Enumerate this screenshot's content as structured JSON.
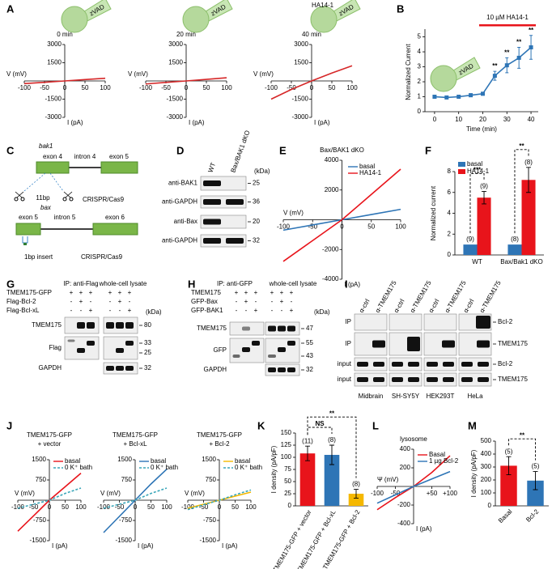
{
  "panel_labels": [
    "A",
    "B",
    "C",
    "D",
    "E",
    "F",
    "G",
    "H",
    "I",
    "J",
    "K",
    "L",
    "M"
  ],
  "chart_data": [
    {
      "type": "line",
      "title": "0 min",
      "pipette_label": "zVAD",
      "x_label": "V (mV)",
      "y_label": "I (pA)",
      "x": [
        -100,
        -50,
        0,
        50,
        100
      ],
      "series": [
        {
          "color": "#d62728",
          "values": [
            -220,
            -110,
            0,
            110,
            220
          ]
        }
      ],
      "xlim": [
        -100,
        100
      ],
      "ylim": [
        -3000,
        3000
      ],
      "xticks": [
        -100,
        -50,
        0,
        50,
        100
      ],
      "yticks": [
        -3000,
        -1500,
        1500,
        3000
      ]
    },
    {
      "type": "line",
      "title": "20 min",
      "pipette_label": "zVAD",
      "x_label": "V (mV)",
      "y_label": "I (pA)",
      "x": [
        -100,
        -50,
        0,
        50,
        100
      ],
      "series": [
        {
          "color": "#d62728",
          "values": [
            -250,
            -120,
            0,
            130,
            260
          ]
        }
      ],
      "xlim": [
        -100,
        100
      ],
      "ylim": [
        -3000,
        3000
      ],
      "xticks": [
        -100,
        -50,
        0,
        50,
        100
      ],
      "yticks": [
        -3000,
        -1500,
        1500,
        3000
      ]
    },
    {
      "type": "line",
      "title": "40 min",
      "drug_label": "HA14-1",
      "pipette_label": "zVAD",
      "x_label": "V (mV)",
      "y_label": "I (pA)",
      "x": [
        -100,
        -50,
        0,
        50,
        100
      ],
      "series": [
        {
          "color": "#d62728",
          "values": [
            -1500,
            -700,
            0,
            650,
            1250
          ]
        }
      ],
      "xlim": [
        -100,
        100
      ],
      "ylim": [
        -3000,
        3000
      ],
      "xticks": [
        -100,
        -50,
        0,
        50,
        100
      ],
      "yticks": [
        -3000,
        -1500,
        1500,
        3000
      ]
    },
    {
      "type": "timecourse",
      "annotation": "10 µM HA14-1",
      "pipette_label": "zVAD",
      "x_label": "Time (min)",
      "y_label": "Normalized Current",
      "color": "#2e75b6",
      "x": [
        0,
        5,
        10,
        15,
        20,
        25,
        30,
        35,
        40
      ],
      "values": [
        1.0,
        0.95,
        1.0,
        1.1,
        1.2,
        2.4,
        3.1,
        3.6,
        4.3
      ],
      "errors": [
        0.1,
        0.05,
        0.05,
        0.1,
        0.1,
        0.3,
        0.5,
        0.7,
        0.8
      ],
      "point_labels": [
        null,
        null,
        null,
        null,
        null,
        "**",
        "**",
        "**",
        "**"
      ],
      "xlim": [
        -4,
        43
      ],
      "ylim": [
        0,
        5.3
      ],
      "xticks": [
        0,
        10,
        20,
        30,
        40
      ],
      "yticks": [
        0,
        1,
        2,
        3,
        4,
        5
      ]
    },
    {
      "type": "line",
      "title": "Bax/BAK1 dKO",
      "x_label": "V (mV)",
      "y_label": "I (pA)",
      "x": [
        -100,
        -50,
        0,
        50,
        100
      ],
      "series": [
        {
          "name": "basal",
          "color": "#2e75b6",
          "values": [
            -700,
            -350,
            0,
            350,
            700
          ]
        },
        {
          "name": "HA14-1",
          "color": "#e8141b",
          "values": [
            -2800,
            -1400,
            0,
            1700,
            3400
          ]
        }
      ],
      "xlim": [
        -100,
        100
      ],
      "ylim": [
        -4000,
        4000
      ],
      "xticks": [
        -100,
        -50,
        0,
        50,
        100
      ],
      "yticks": [
        -4000,
        -2000,
        2000,
        4000
      ]
    },
    {
      "type": "bar",
      "y_label": "Normalized current",
      "categories": [
        "WT",
        "Bax/Bak1 dKO"
      ],
      "series": [
        {
          "name": "basal",
          "color": "#2e75b6",
          "values": [
            1,
            1
          ],
          "n_labels": [
            "(9)",
            "(8)"
          ]
        },
        {
          "name": "HA14-1",
          "color": "#e8141b",
          "values": [
            5.5,
            7.2
          ],
          "errors": [
            0.6,
            1.2
          ],
          "n_labels": [
            "(9)",
            "(8)"
          ]
        }
      ],
      "significance": [
        "***",
        "**"
      ],
      "ylim": [
        0,
        8
      ],
      "yticks": [
        0,
        2,
        4,
        6,
        8
      ]
    },
    {
      "type": "line",
      "title": [
        "TMEM175-GFP",
        "+ vector"
      ],
      "x_label": "V (mV)",
      "y_label": "I (pA)",
      "x": [
        -100,
        -50,
        0,
        50,
        100
      ],
      "series": [
        {
          "name": "basal",
          "color": "#e8141b",
          "values": [
            -1150,
            -580,
            0,
            500,
            1000
          ]
        },
        {
          "name": "0 K⁺ bath",
          "color": "#3aa6b9",
          "dash": true,
          "values": [
            -300,
            -150,
            0,
            250,
            450
          ]
        }
      ],
      "xlim": [
        -100,
        100
      ],
      "ylim": [
        -1500,
        1500
      ],
      "xticks": [
        -100,
        -50,
        0,
        50,
        100
      ],
      "yticks": [
        -1500,
        -750,
        750,
        1500
      ]
    },
    {
      "type": "line",
      "title": [
        "TMEM175-GFP",
        "+ Bcl-xL"
      ],
      "x_label": "V (mV)",
      "y_label": "I (pA)",
      "x": [
        -100,
        -50,
        0,
        50,
        100
      ],
      "series": [
        {
          "name": "basal",
          "color": "#2e75b6",
          "values": [
            -1200,
            -600,
            0,
            600,
            1150
          ]
        },
        {
          "name": "0 K⁺ bath",
          "color": "#3aa6b9",
          "dash": true,
          "values": [
            -300,
            -150,
            0,
            250,
            450
          ]
        }
      ],
      "xlim": [
        -100,
        100
      ],
      "ylim": [
        -1500,
        1500
      ],
      "xticks": [
        -100,
        -50,
        0,
        50,
        100
      ],
      "yticks": [
        -1500,
        -750,
        750,
        1500
      ]
    },
    {
      "type": "line",
      "title": [
        "TMEM175-GFP",
        "+ Bcl-2"
      ],
      "x_label": "V (mV)",
      "y_label": "I (pA)",
      "x": [
        -100,
        -50,
        0,
        50,
        100
      ],
      "series": [
        {
          "name": "basal",
          "color": "#f5b800",
          "values": [
            -300,
            -150,
            0,
            150,
            300
          ]
        },
        {
          "name": "0 K⁺ bath",
          "color": "#3aa6b9",
          "dash": true,
          "values": [
            -350,
            -170,
            0,
            200,
            380
          ]
        }
      ],
      "xlim": [
        -100,
        100
      ],
      "ylim": [
        -1500,
        1500
      ],
      "xticks": [
        -100,
        -50,
        0,
        50,
        100
      ],
      "yticks": [
        -1500,
        -750,
        750,
        1500
      ]
    },
    {
      "type": "bar",
      "y_label": "I density (pA/pF)",
      "categories": [
        "TMEM175-GFP + vector",
        "TMEM175-GFP + Bcl-xL",
        "TMEM175-GFP + Bcl-2"
      ],
      "values": [
        108,
        105,
        25
      ],
      "errors": [
        15,
        20,
        9
      ],
      "colors": [
        "#e8141b",
        "#2e75b6",
        "#f5b800"
      ],
      "n_labels": [
        "(11)",
        "(8)",
        "(8)"
      ],
      "significance": [
        "NS",
        "**"
      ],
      "ylim": [
        0,
        150
      ],
      "yticks": [
        0,
        25,
        50,
        75,
        100,
        125,
        150
      ]
    },
    {
      "type": "line",
      "title": "lysosome",
      "x_label": "Ψ (mV)",
      "y_label": "I (pA)",
      "x": [
        -100,
        -50,
        0,
        50,
        100
      ],
      "series": [
        {
          "name": "Basal",
          "color": "#e8141b",
          "values": [
            -250,
            -120,
            0,
            150,
            330
          ]
        },
        {
          "name": "1 µg Bcl-2",
          "color": "#2e75b6",
          "values": [
            -180,
            -90,
            0,
            80,
            160
          ]
        }
      ],
      "xlim": [
        -100,
        100
      ],
      "ylim": [
        -400,
        400
      ],
      "xticks": [
        -100,
        -50,
        {
          "value": 50,
          "label": "+50"
        },
        {
          "value": 100,
          "label": "+100"
        }
      ],
      "yticks": [
        -400,
        -200,
        200,
        400
      ]
    },
    {
      "type": "bar",
      "y_label": "I density (pA/pF)",
      "categories": [
        "Basal",
        "Bcl-2"
      ],
      "values": [
        310,
        195
      ],
      "errors": [
        70,
        70
      ],
      "colors": [
        "#e8141b",
        "#2e75b6"
      ],
      "n_labels": [
        "(5)",
        "(5)"
      ],
      "significance": [
        "**"
      ],
      "ylim": [
        0,
        500
      ],
      "yticks": [
        0,
        100,
        200,
        300,
        400,
        500
      ]
    }
  ],
  "diagram": {
    "bak1": {
      "gene": "bak1",
      "exons": [
        "exon 4",
        "exon 5"
      ],
      "intron": "intron 4",
      "mutation": "11bp",
      "tool": "CRISPR/Cas9"
    },
    "bax": {
      "gene": "bax",
      "exons": [
        "exon 5",
        "exon 6"
      ],
      "intron": "intron 5",
      "mutation": "1bp insert",
      "tool": "CRISPR/Cas9"
    }
  },
  "blots": {
    "D": {
      "columns": [
        "WT",
        "Bax/BAK1 dKO"
      ],
      "unit": "(kDa)",
      "rows": [
        {
          "label": "anti-BAK1",
          "kda": [
            25
          ]
        },
        {
          "label": "anti-GAPDH",
          "kda": [
            36
          ]
        },
        {
          "label": "anti-Bax",
          "kda": [
            20
          ]
        },
        {
          "label": "anti-GAPDH",
          "kda": [
            32
          ]
        }
      ]
    },
    "G": {
      "groups": [
        "IP: anti-Flag",
        "whole-cell lysate"
      ],
      "conditions": [
        {
          "label": "TMEM175-GFP",
          "signs": [
            "+",
            "+",
            "+",
            "+",
            "+",
            "+"
          ]
        },
        {
          "label": "Flag-Bcl-2",
          "signs": [
            "-",
            "+",
            "-",
            "-",
            "+",
            "-"
          ]
        },
        {
          "label": "Flag-Bcl-xL",
          "signs": [
            "-",
            "-",
            "+",
            "-",
            "-",
            "+"
          ]
        }
      ],
      "unit": "(kDa)",
      "rows": [
        {
          "label": "TMEM175",
          "kda": [
            80
          ]
        },
        {
          "label": "Flag",
          "kda": [
            33,
            25
          ]
        },
        {
          "label": "GAPDH",
          "kda": [
            32
          ]
        }
      ]
    },
    "H": {
      "groups": [
        "IP: anti-GFP",
        "whole-cell lysate"
      ],
      "conditions": [
        {
          "label": "TMEM175",
          "signs": [
            "+",
            "+",
            "+",
            "+",
            "+",
            "+"
          ]
        },
        {
          "label": "GFP-Bax",
          "signs": [
            "-",
            "+",
            "-",
            "-",
            "+",
            "-"
          ]
        },
        {
          "label": "GFP-BAK1",
          "signs": [
            "-",
            "-",
            "+",
            "-",
            "-",
            "+"
          ]
        }
      ],
      "unit": "(kDa)",
      "rows": [
        {
          "label": "TMEM175",
          "kda": [
            47
          ]
        },
        {
          "label": "GFP",
          "kda": [
            55,
            43
          ]
        },
        {
          "label": "GAPDH",
          "kda": [
            32
          ]
        }
      ]
    },
    "I": {
      "groups": [
        {
          "cells": "Midbrain",
          "columns": [
            "α-ctrl",
            "α-TMEM175"
          ]
        },
        {
          "cells": "SH-SY5Y",
          "columns": [
            "α-ctrl",
            "α-TMEM175"
          ]
        },
        {
          "cells": "HEK293T",
          "columns": [
            "α-ctrl",
            "α-TMEM175"
          ]
        },
        {
          "cells": "HeLa",
          "columns": [
            "α-ctrl",
            "α-TMEM175"
          ]
        }
      ],
      "rows": [
        {
          "label": "IP",
          "target": "Bcl-2"
        },
        {
          "label": "IP",
          "target": "TMEM175"
        },
        {
          "label": "input",
          "target": "Bcl-2"
        },
        {
          "label": "input",
          "target": "TMEM175"
        }
      ]
    }
  }
}
